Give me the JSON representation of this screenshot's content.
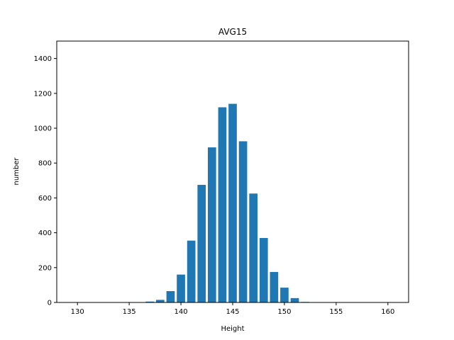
{
  "chart_data": {
    "type": "bar",
    "title": "AVG15",
    "xlabel": "Height",
    "ylabel": "number",
    "x": [
      137,
      138,
      139,
      140,
      141,
      142,
      143,
      144,
      145,
      146,
      147,
      148,
      149,
      150,
      151,
      152
    ],
    "values": [
      5,
      15,
      65,
      160,
      355,
      675,
      890,
      1120,
      1140,
      925,
      625,
      370,
      175,
      85,
      25,
      3
    ],
    "xlim": [
      128,
      162
    ],
    "ylim": [
      0,
      1500
    ],
    "xticks": [
      130,
      135,
      140,
      145,
      150,
      155,
      160
    ],
    "yticks": [
      0,
      200,
      400,
      600,
      800,
      1000,
      1200,
      1400
    ],
    "bar_color": "#1f77b4",
    "grid": false,
    "legend": "none"
  }
}
